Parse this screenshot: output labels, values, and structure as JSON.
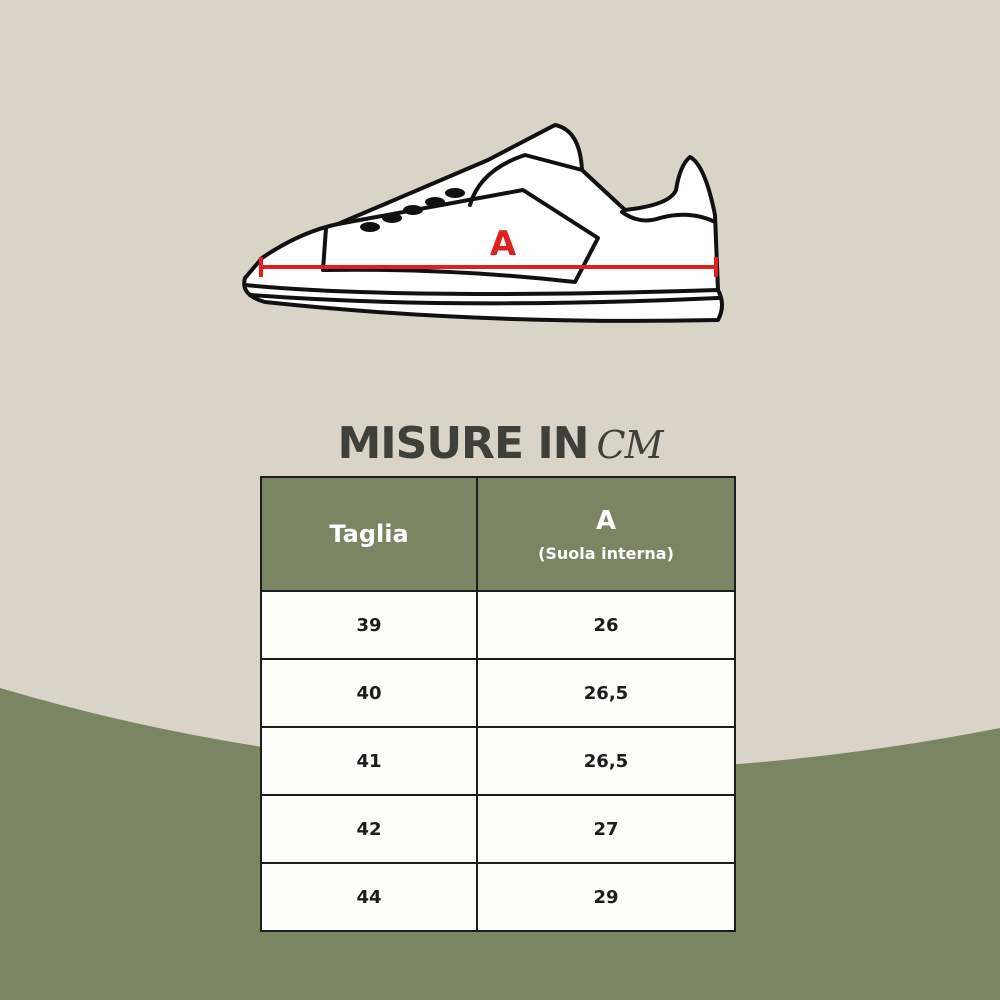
{
  "diagram": {
    "measure_label": "A",
    "measure_color": "#e02020"
  },
  "title": {
    "main": "MISURE IN",
    "unit": "CM"
  },
  "table": {
    "headers": {
      "size": "Taglia",
      "measure": "A",
      "measure_note": "(Suola interna)"
    },
    "rows": [
      {
        "size": "39",
        "value": "26"
      },
      {
        "size": "40",
        "value": "26,5"
      },
      {
        "size": "41",
        "value": "26,5"
      },
      {
        "size": "42",
        "value": "27"
      },
      {
        "size": "44",
        "value": "29"
      }
    ]
  },
  "colors": {
    "background": "#d9d3c8",
    "accent_green": "#7a8662",
    "title_text": "#3f403a"
  }
}
